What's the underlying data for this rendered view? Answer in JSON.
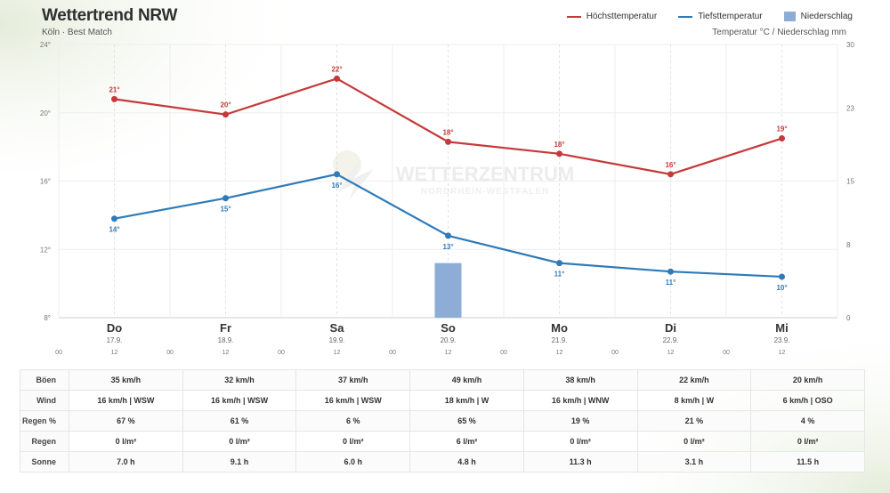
{
  "header": {
    "title": "Wettertrend NRW",
    "subtitle": "Köln · Best Match",
    "unit_label": "Temperatur °C / Niederschlag mm"
  },
  "legend": [
    {
      "label": "Höchsttemperatur",
      "color": "#c43a3a",
      "kind": "line"
    },
    {
      "label": "Tiefsttemperatur",
      "color": "#2f7ab8",
      "kind": "line"
    },
    {
      "label": "Niederschlag",
      "color": "#8eadd6",
      "kind": "bar"
    }
  ],
  "watermark": {
    "line1": "WETTERZENTRUM",
    "line2": "NORDRHEIN-WESTFALEN"
  },
  "chart_data": {
    "type": "line",
    "categories": [
      "Do",
      "Fr",
      "Sa",
      "So",
      "Mo",
      "Di",
      "Mi"
    ],
    "dates": [
      "17.9.",
      "18.9.",
      "19.9.",
      "20.9.",
      "21.9.",
      "22.9.",
      "23.9."
    ],
    "hour_ticks": [
      "00",
      "12"
    ],
    "series": [
      {
        "name": "Höchsttemperatur",
        "color": "#c43a3a",
        "values": [
          20.8,
          19.9,
          22.0,
          18.3,
          17.6,
          16.4,
          18.5
        ],
        "labels": [
          "21°",
          "20°",
          "22°",
          "18°",
          "18°",
          "16°",
          "19°"
        ]
      },
      {
        "name": "Tiefsttemperatur",
        "color": "#2f7ab8",
        "values": [
          13.8,
          15.0,
          16.4,
          12.8,
          11.2,
          10.7,
          10.4
        ],
        "labels": [
          "14°",
          "15°",
          "16°",
          "13°",
          "11°",
          "11°",
          "10°"
        ]
      }
    ],
    "precipitation": {
      "name": "Niederschlag",
      "color": "#8eadd6",
      "values": [
        0,
        0,
        0,
        6,
        0,
        0,
        0
      ]
    },
    "y_left": {
      "ylim": [
        8,
        24
      ],
      "ticks": [
        8,
        12,
        16,
        20,
        24
      ],
      "tick_labels": [
        "8°",
        "12°",
        "16°",
        "20°",
        "24°"
      ]
    },
    "y_right": {
      "ylim": [
        0,
        30
      ],
      "ticks": [
        0,
        8,
        15,
        23,
        30
      ],
      "tick_labels": [
        "0",
        "8",
        "15",
        "23",
        "30"
      ]
    },
    "grid": true,
    "legend_position": "top-right"
  },
  "table": {
    "rows": [
      {
        "label": "Böen",
        "values": [
          "35 km/h",
          "32 km/h",
          "37 km/h",
          "49 km/h",
          "38 km/h",
          "22 km/h",
          "20 km/h"
        ]
      },
      {
        "label": "Wind",
        "values": [
          "16 km/h | WSW",
          "16 km/h | WSW",
          "16 km/h | WSW",
          "18 km/h | W",
          "16 km/h | WNW",
          "8 km/h | W",
          "6 km/h | OSO"
        ]
      },
      {
        "label": "Regen %",
        "values": [
          "67 %",
          "61 %",
          "6 %",
          "65 %",
          "19 %",
          "21 %",
          "4 %"
        ]
      },
      {
        "label": "Regen",
        "values": [
          "0 l/m²",
          "0 l/m²",
          "0 l/m²",
          "6 l/m²",
          "0 l/m²",
          "0 l/m²",
          "0 l/m²"
        ]
      },
      {
        "label": "Sonne",
        "values": [
          "7.0 h",
          "9.1 h",
          "6.0 h",
          "4.8 h",
          "11.3 h",
          "3.1 h",
          "11.5 h"
        ]
      }
    ]
  }
}
